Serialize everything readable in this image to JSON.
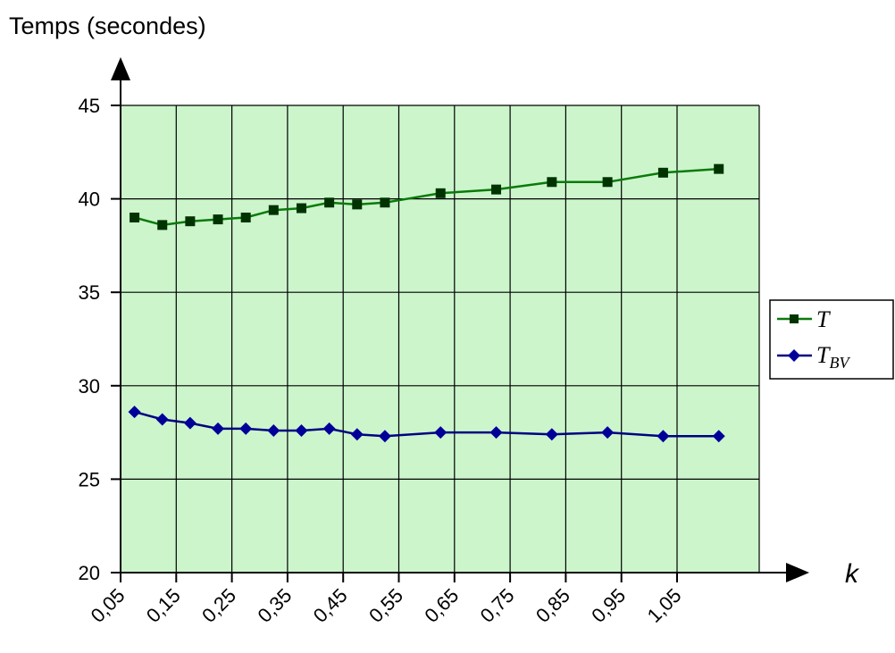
{
  "chart_data": {
    "type": "line",
    "title": "",
    "ylabel": "Temps (secondes)",
    "xlabel": "k",
    "xlim": [
      0.05,
      1.15
    ],
    "ylim": [
      20,
      45
    ],
    "y_ticks": [
      20,
      25,
      30,
      35,
      40,
      45
    ],
    "y_tick_labels": [
      "20",
      "25",
      "30",
      "35",
      "40",
      "45"
    ],
    "x_ticks": [
      0.05,
      0.15,
      0.25,
      0.35,
      0.45,
      0.55,
      0.65,
      0.75,
      0.85,
      0.95,
      1.05
    ],
    "x_tick_labels": [
      "0,05",
      "0,15",
      "0,25",
      "0,35",
      "0,45",
      "0,55",
      "0,65",
      "0,75",
      "0,85",
      "0,95",
      "1,05"
    ],
    "grid": true,
    "plot_background": "#ccf5cc",
    "legend_position": "right",
    "series": [
      {
        "name": "T",
        "legend_main": "T",
        "legend_sub": "",
        "color": "#0a7a0a",
        "marker_color": "#003300",
        "marker": "square",
        "x": [
          0.075,
          0.125,
          0.175,
          0.225,
          0.275,
          0.325,
          0.375,
          0.425,
          0.475,
          0.525,
          0.625,
          0.725,
          0.825,
          0.925,
          1.025,
          1.125
        ],
        "y": [
          39.0,
          38.6,
          38.8,
          38.9,
          39.0,
          39.4,
          39.5,
          39.8,
          39.7,
          39.8,
          40.3,
          40.5,
          40.9,
          40.9,
          41.4,
          41.6
        ]
      },
      {
        "name": "T_BV",
        "legend_main": "T",
        "legend_sub": "BV",
        "color": "#000080",
        "marker_color": "#000099",
        "marker": "diamond",
        "x": [
          0.075,
          0.125,
          0.175,
          0.225,
          0.275,
          0.325,
          0.375,
          0.425,
          0.475,
          0.525,
          0.625,
          0.725,
          0.825,
          0.925,
          1.025,
          1.125
        ],
        "y": [
          28.6,
          28.2,
          28.0,
          27.7,
          27.7,
          27.6,
          27.6,
          27.7,
          27.4,
          27.3,
          27.5,
          27.5,
          27.4,
          27.5,
          27.3,
          27.3
        ]
      }
    ]
  }
}
